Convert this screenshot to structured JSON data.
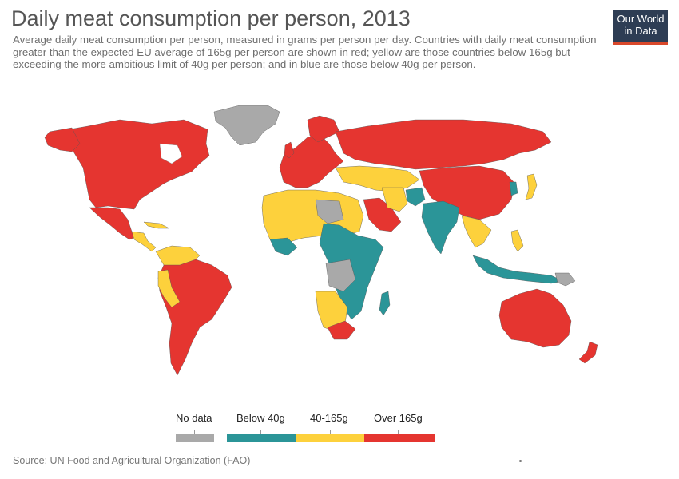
{
  "title": "Daily meat consumption per person, 2013",
  "subtitle": "Average daily meat consumption per person, measured in grams per person per day. Countries with daily meat consumption greater than the expected EU average of 165g per person are shown in red; yellow are those countries below 165g but exceeding the more ambitious limit of 40g per person; and in blue are those below 40g per person.",
  "logo": {
    "line1": "Our World",
    "line2": "in Data"
  },
  "legend": {
    "no_data": {
      "label": "No data",
      "color": "#a9a9a9"
    },
    "below_40": {
      "label": "Below 40g",
      "color": "#2b9598"
    },
    "mid": {
      "label": "40-165g",
      "color": "#fdd13c"
    },
    "over_165": {
      "label": "Over 165g",
      "color": "#e53530"
    }
  },
  "source": "Source: UN Food and Agricultural Organization (FAO)",
  "colors": {
    "red": "#e53530",
    "yellow": "#fdd13c",
    "teal": "#2b9598",
    "gray": "#a9a9a9"
  }
}
